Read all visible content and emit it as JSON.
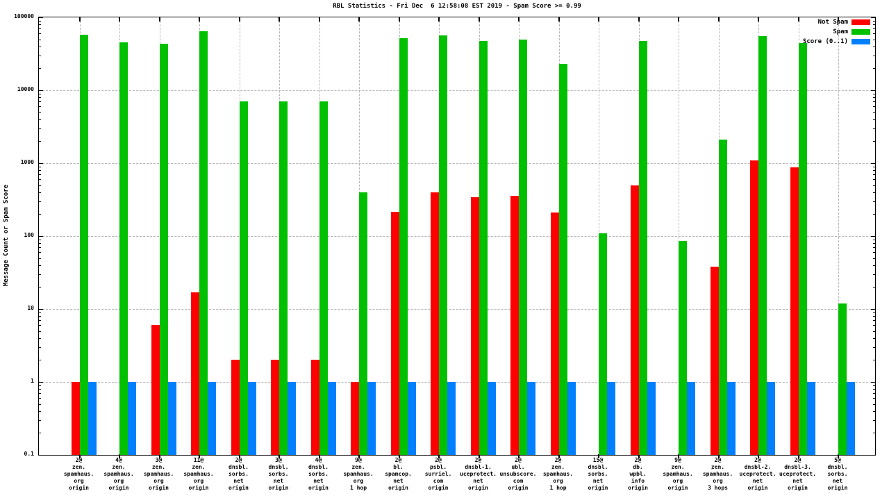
{
  "chart": {
    "title": "RBL Statistics - Fri Dec  6 12:58:08 EST 2019 - Spam Score >= 0.99",
    "ylabel": "Message Count or Spam Score"
  },
  "chart_data": {
    "type": "bar",
    "title": "RBL Statistics - Fri Dec  6 12:58:08 EST 2019 - Spam Score >= 0.99",
    "ylabel": "Message Count or Spam Score",
    "yscale": "log",
    "ylim": [
      0.1,
      100000
    ],
    "yticks": [
      100000,
      10000,
      1000,
      100,
      10,
      1,
      0.1
    ],
    "ytick_labels": [
      "100000",
      "10000",
      "1000",
      "100",
      "10",
      "1",
      "0.1"
    ],
    "grid": "dashed gray horizontal lines at each decade and vertical line at each category",
    "legend_position": "top-right-inside",
    "categories": [
      [
        "2@",
        "zen.",
        "spamhaus.",
        "org",
        "origin"
      ],
      [
        "4@",
        "zen.",
        "spamhaus.",
        "org",
        "origin"
      ],
      [
        "3@",
        "zen.",
        "spamhaus.",
        "org",
        "origin"
      ],
      [
        "11@",
        "zen.",
        "spamhaus.",
        "org",
        "origin"
      ],
      [
        "2@",
        "dnsbl.",
        "sorbs.",
        "net",
        "origin"
      ],
      [
        "3@",
        "dnsbl.",
        "sorbs.",
        "net",
        "origin"
      ],
      [
        "4@",
        "dnsbl.",
        "sorbs.",
        "net",
        "origin"
      ],
      [
        "9@",
        "zen.",
        "spamhaus.",
        "org",
        "1 hop"
      ],
      [
        "2@",
        "bl.",
        "spamcop.",
        "net",
        "origin"
      ],
      [
        "2@",
        "psbl.",
        "surriel.",
        "com",
        "origin"
      ],
      [
        "2@",
        "dnsbl-1.",
        "uceprotect.",
        "net",
        "origin"
      ],
      [
        "2@",
        "ubl.",
        "unsubscore.",
        "com",
        "origin"
      ],
      [
        "2@",
        "zen.",
        "spamhaus.",
        "org",
        "1 hop"
      ],
      [
        "15@",
        "dnsbl.",
        "sorbs.",
        "net",
        "origin"
      ],
      [
        "2@",
        "db.",
        "wpbl.",
        "info",
        "origin"
      ],
      [
        "9@",
        "zen.",
        "spamhaus.",
        "org",
        "origin"
      ],
      [
        "2@",
        "zen.",
        "spamhaus.",
        "org",
        "3 hops"
      ],
      [
        "2@",
        "dnsbl-2.",
        "uceprotect.",
        "net",
        "origin"
      ],
      [
        "2@",
        "dnsbl-3.",
        "uceprotect.",
        "net",
        "origin"
      ],
      [
        "5@",
        "dnsbl.",
        "sorbs.",
        "net",
        "origin"
      ]
    ],
    "series": [
      {
        "name": "Not Spam",
        "color": "#ff0000",
        "values": [
          1,
          0,
          6,
          17,
          2,
          2,
          2,
          1,
          215,
          400,
          340,
          360,
          210,
          0,
          500,
          0,
          38,
          1100,
          880,
          0
        ]
      },
      {
        "name": "Spam",
        "color": "#00c000",
        "values": [
          58000,
          45000,
          43000,
          65000,
          7000,
          7000,
          7000,
          400,
          52000,
          57000,
          47000,
          50000,
          23000,
          110,
          47000,
          85,
          2100,
          55000,
          44000,
          12
        ]
      },
      {
        "name": "Score (0..1)",
        "color": "#0080ff",
        "values": [
          0.99,
          0.99,
          0.99,
          0.99,
          0.99,
          0.99,
          0.99,
          0.99,
          0.99,
          0.99,
          0.99,
          0.99,
          0.99,
          0.99,
          0.99,
          0.99,
          0.99,
          0.99,
          0.99,
          0.99
        ]
      }
    ]
  }
}
